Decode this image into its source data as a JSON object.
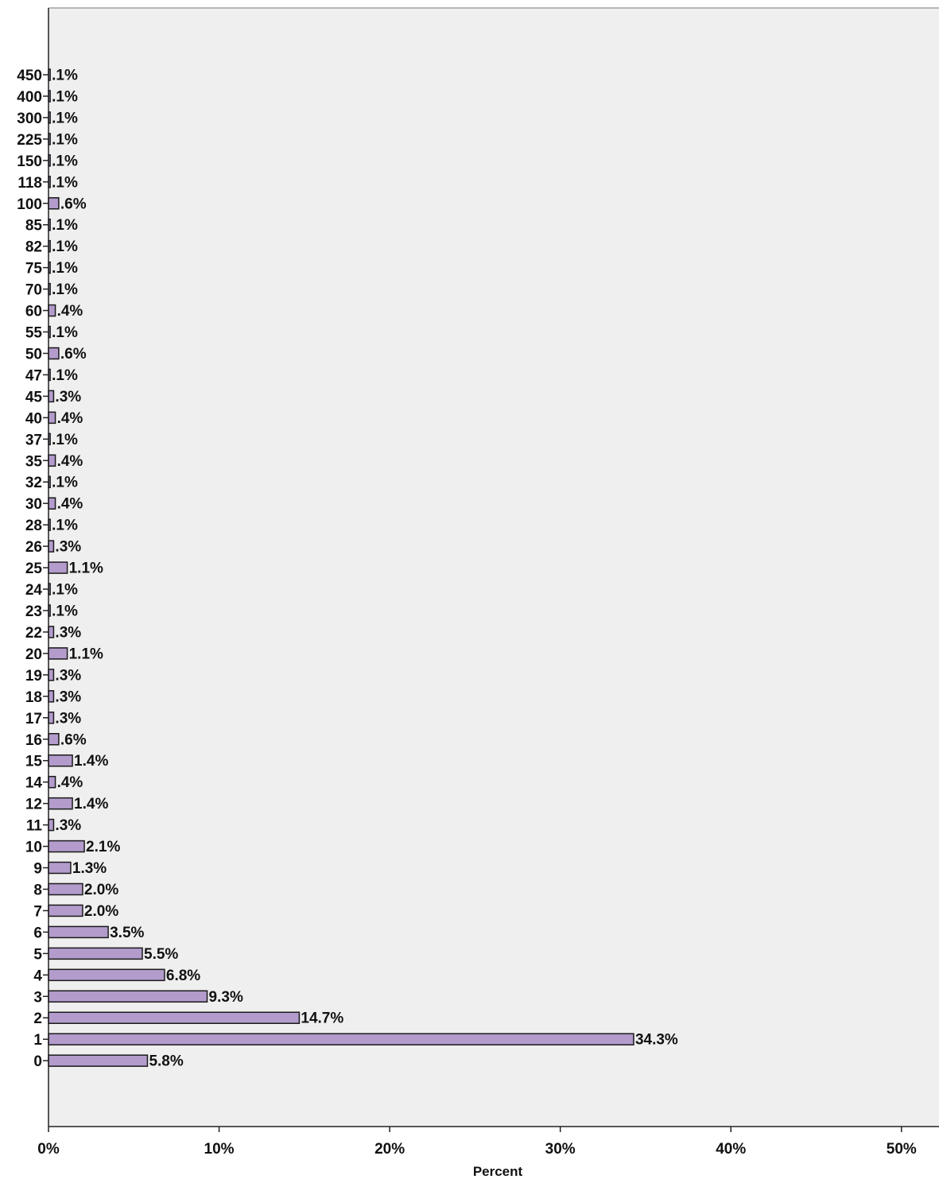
{
  "chart_data": {
    "type": "bar",
    "orientation": "horizontal",
    "categories": [
      "450",
      "400",
      "300",
      "225",
      "150",
      "118",
      "100",
      "85",
      "82",
      "75",
      "70",
      "60",
      "55",
      "50",
      "47",
      "45",
      "40",
      "37",
      "35",
      "32",
      "30",
      "28",
      "26",
      "25",
      "24",
      "23",
      "22",
      "20",
      "19",
      "18",
      "17",
      "16",
      "15",
      "14",
      "12",
      "11",
      "10",
      "9",
      "8",
      "7",
      "6",
      "5",
      "4",
      "3",
      "2",
      "1",
      "0"
    ],
    "values": [
      0.1,
      0.1,
      0.1,
      0.1,
      0.1,
      0.1,
      0.6,
      0.1,
      0.1,
      0.1,
      0.1,
      0.4,
      0.1,
      0.6,
      0.1,
      0.3,
      0.4,
      0.1,
      0.4,
      0.1,
      0.4,
      0.1,
      0.3,
      1.1,
      0.1,
      0.1,
      0.3,
      1.1,
      0.3,
      0.3,
      0.3,
      0.6,
      1.4,
      0.4,
      1.4,
      0.3,
      2.1,
      1.3,
      2.0,
      2.0,
      3.5,
      5.5,
      6.8,
      9.3,
      14.7,
      34.3,
      5.8
    ],
    "data_labels": [
      ".1%",
      ".1%",
      ".1%",
      ".1%",
      ".1%",
      ".1%",
      ".6%",
      ".1%",
      ".1%",
      ".1%",
      ".1%",
      ".4%",
      ".1%",
      ".6%",
      ".1%",
      ".3%",
      ".4%",
      ".1%",
      ".4%",
      ".1%",
      ".4%",
      ".1%",
      ".3%",
      "1.1%",
      ".1%",
      ".1%",
      ".3%",
      "1.1%",
      ".3%",
      ".3%",
      ".3%",
      ".6%",
      "1.4%",
      ".4%",
      "1.4%",
      ".3%",
      "2.1%",
      "1.3%",
      "2.0%",
      "2.0%",
      "3.5%",
      "5.5%",
      "6.8%",
      "9.3%",
      "14.7%",
      "34.3%",
      "5.8%"
    ],
    "x_ticks": [
      "0%",
      "10%",
      "20%",
      "30%",
      "40%",
      "50%"
    ],
    "xlabel": "Percent",
    "ylabel": "",
    "xlim": [
      0,
      52.2
    ],
    "grid": false,
    "colors": {
      "bar_fill": "#b39ccc",
      "bar_stroke": "#1a1a1a",
      "plot_bg": "#efefef",
      "axis": "#222222"
    }
  }
}
